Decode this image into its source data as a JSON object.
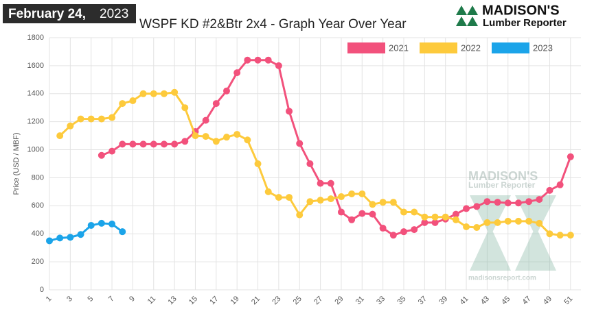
{
  "header": {
    "date": "February 24,",
    "year": "2023"
  },
  "logo": {
    "name": "MADISON'S",
    "tagline": "Lumber Reporter"
  },
  "watermark": {
    "name": "MADISON'S",
    "tagline": "Lumber Reporter",
    "url": "madisonsreport.com"
  },
  "chart_data": {
    "type": "line",
    "title": "WSPF KD #2&Btr 2x4 - Graph Year Over Year",
    "y_label": "Price (USD / MBF)",
    "x": [
      1,
      2,
      3,
      4,
      5,
      6,
      7,
      8,
      9,
      10,
      11,
      12,
      13,
      14,
      15,
      16,
      17,
      18,
      19,
      20,
      21,
      22,
      23,
      24,
      25,
      26,
      27,
      28,
      29,
      30,
      31,
      32,
      33,
      34,
      35,
      36,
      37,
      38,
      39,
      40,
      41,
      42,
      43,
      44,
      45,
      46,
      47,
      48,
      49,
      50,
      51
    ],
    "xlim": [
      1,
      52
    ],
    "xticks": [
      1,
      3,
      5,
      7,
      9,
      11,
      13,
      15,
      17,
      19,
      21,
      23,
      25,
      27,
      29,
      31,
      33,
      35,
      37,
      39,
      41,
      43,
      45,
      47,
      49,
      51
    ],
    "ylim": [
      0,
      1800
    ],
    "yticks": [
      0,
      200,
      400,
      600,
      800,
      1000,
      1200,
      1400,
      1600,
      1800
    ],
    "grid": true,
    "legend": "top-right",
    "series": [
      {
        "name": "2021",
        "color": "#f2517c",
        "values": [
          null,
          null,
          null,
          null,
          null,
          960,
          990,
          1040,
          1040,
          1040,
          1040,
          1040,
          1040,
          1060,
          1130,
          1210,
          1330,
          1420,
          1550,
          1640,
          1640,
          1640,
          1600,
          1275,
          1045,
          900,
          760,
          760,
          555,
          500,
          545,
          540,
          440,
          390,
          415,
          430,
          480,
          480,
          505,
          540,
          580,
          595,
          630,
          625,
          620,
          620,
          630,
          645,
          710,
          750,
          950
        ]
      },
      {
        "name": "2022",
        "color": "#fdca3c",
        "values": [
          null,
          1100,
          1170,
          1220,
          1220,
          1220,
          1230,
          1330,
          1350,
          1400,
          1400,
          1400,
          1410,
          1300,
          1100,
          1095,
          1060,
          1090,
          1110,
          1070,
          900,
          700,
          660,
          660,
          535,
          630,
          640,
          650,
          665,
          685,
          685,
          610,
          625,
          625,
          555,
          555,
          520,
          520,
          520,
          500,
          450,
          445,
          480,
          480,
          490,
          490,
          490,
          475,
          400,
          390,
          390
        ]
      },
      {
        "name": "2023",
        "color": "#1ba4e9",
        "values": [
          350,
          370,
          375,
          395,
          460,
          475,
          470,
          415,
          null,
          null,
          null,
          null,
          null,
          null,
          null,
          null,
          null,
          null,
          null,
          null,
          null,
          null,
          null,
          null,
          null,
          null,
          null,
          null,
          null,
          null,
          null,
          null,
          null,
          null,
          null,
          null,
          null,
          null,
          null,
          null,
          null,
          null,
          null,
          null,
          null,
          null,
          null,
          null,
          null,
          null,
          null
        ]
      }
    ]
  }
}
